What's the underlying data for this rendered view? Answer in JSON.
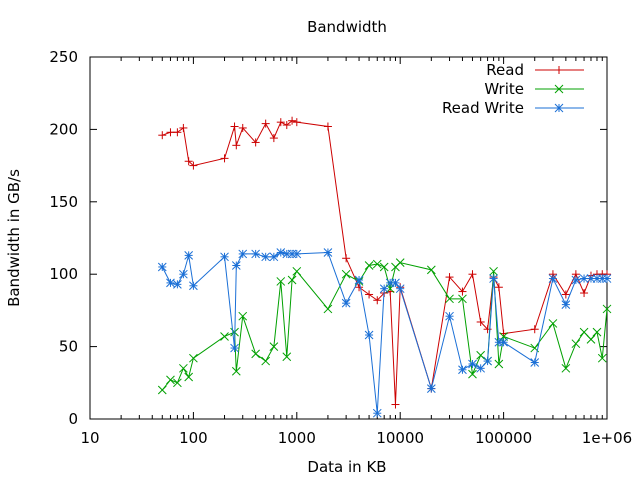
{
  "chart_data": {
    "type": "line",
    "title": "Bandwidth",
    "xlabel": "Data in KB",
    "ylabel": "Bandwidth in GB/s",
    "xscale": "log",
    "xlim": [
      10,
      1000000
    ],
    "ylim": [
      0,
      250
    ],
    "x_ticks": [
      10,
      100,
      1000,
      10000,
      100000,
      1000000
    ],
    "x_tick_labels": [
      "10",
      "100",
      "1000",
      "10000",
      "100000",
      "1e+06"
    ],
    "y_ticks": [
      0,
      50,
      100,
      150,
      200,
      250
    ],
    "y_tick_labels": [
      "0",
      "50",
      "100",
      "150",
      "200",
      "250"
    ],
    "grid": false,
    "legend_position": "top-right",
    "series": [
      {
        "name": "Read",
        "color": "#cc0000",
        "marker": "plus",
        "points": [
          [
            50,
            196
          ],
          [
            60,
            198
          ],
          [
            70,
            198
          ],
          [
            80,
            201
          ],
          [
            90,
            178
          ],
          [
            100,
            175
          ],
          [
            200,
            180
          ],
          [
            250,
            202
          ],
          [
            260,
            189
          ],
          [
            300,
            201
          ],
          [
            400,
            191
          ],
          [
            500,
            204
          ],
          [
            600,
            194
          ],
          [
            700,
            205
          ],
          [
            800,
            203
          ],
          [
            900,
            206
          ],
          [
            1000,
            205
          ],
          [
            2000,
            202
          ],
          [
            3000,
            111
          ],
          [
            4000,
            91
          ],
          [
            5000,
            86
          ],
          [
            6000,
            82
          ],
          [
            7000,
            87
          ],
          [
            8000,
            88
          ],
          [
            9000,
            10
          ],
          [
            10000,
            91
          ],
          [
            20000,
            21
          ],
          [
            30000,
            98
          ],
          [
            40000,
            88
          ],
          [
            50000,
            100
          ],
          [
            60000,
            67
          ],
          [
            70000,
            62
          ],
          [
            80000,
            98
          ],
          [
            90000,
            91
          ],
          [
            100000,
            59
          ],
          [
            200000,
            62
          ],
          [
            300000,
            100
          ],
          [
            400000,
            86
          ],
          [
            500000,
            100
          ],
          [
            600000,
            87
          ],
          [
            700000,
            99
          ],
          [
            800000,
            100
          ],
          [
            900000,
            100
          ],
          [
            1000000,
            100
          ]
        ]
      },
      {
        "name": "Write",
        "color": "#00a000",
        "marker": "cross",
        "points": [
          [
            50,
            20
          ],
          [
            60,
            27
          ],
          [
            70,
            25
          ],
          [
            80,
            35
          ],
          [
            90,
            29
          ],
          [
            100,
            42
          ],
          [
            200,
            57
          ],
          [
            250,
            60
          ],
          [
            260,
            33
          ],
          [
            300,
            71
          ],
          [
            400,
            45
          ],
          [
            500,
            40
          ],
          [
            600,
            50
          ],
          [
            700,
            95
          ],
          [
            800,
            43
          ],
          [
            900,
            96
          ],
          [
            1000,
            102
          ],
          [
            2000,
            76
          ],
          [
            3000,
            100
          ],
          [
            4000,
            95
          ],
          [
            5000,
            106
          ],
          [
            6000,
            107
          ],
          [
            7000,
            105
          ],
          [
            8000,
            90
          ],
          [
            9000,
            105
          ],
          [
            10000,
            108
          ],
          [
            20000,
            103
          ],
          [
            30000,
            83
          ],
          [
            40000,
            83
          ],
          [
            50000,
            31
          ],
          [
            60000,
            44
          ],
          [
            70000,
            40
          ],
          [
            80000,
            102
          ],
          [
            90000,
            38
          ],
          [
            100000,
            57
          ],
          [
            200000,
            49
          ],
          [
            300000,
            66
          ],
          [
            400000,
            35
          ],
          [
            500000,
            52
          ],
          [
            600000,
            60
          ],
          [
            700000,
            55
          ],
          [
            800000,
            60
          ],
          [
            900000,
            42
          ],
          [
            1000000,
            76
          ]
        ]
      },
      {
        "name": "Read Write",
        "color": "#1a6fd6",
        "marker": "star",
        "points": [
          [
            50,
            105
          ],
          [
            60,
            94
          ],
          [
            70,
            93
          ],
          [
            80,
            100
          ],
          [
            90,
            113
          ],
          [
            100,
            92
          ],
          [
            200,
            112
          ],
          [
            250,
            49
          ],
          [
            260,
            106
          ],
          [
            300,
            114
          ],
          [
            400,
            114
          ],
          [
            500,
            112
          ],
          [
            600,
            112
          ],
          [
            700,
            115
          ],
          [
            800,
            114
          ],
          [
            900,
            114
          ],
          [
            1000,
            114
          ],
          [
            2000,
            115
          ],
          [
            3000,
            80
          ],
          [
            4000,
            96
          ],
          [
            5000,
            58
          ],
          [
            6000,
            4
          ],
          [
            7000,
            90
          ],
          [
            8000,
            94
          ],
          [
            9000,
            94
          ],
          [
            10000,
            90
          ],
          [
            20000,
            21
          ],
          [
            30000,
            71
          ],
          [
            40000,
            34
          ],
          [
            50000,
            38
          ],
          [
            60000,
            35
          ],
          [
            70000,
            40
          ],
          [
            80000,
            97
          ],
          [
            90000,
            53
          ],
          [
            100000,
            53
          ],
          [
            200000,
            39
          ],
          [
            300000,
            97
          ],
          [
            400000,
            79
          ],
          [
            500000,
            96
          ],
          [
            600000,
            97
          ],
          [
            700000,
            97
          ],
          [
            800000,
            97
          ],
          [
            900000,
            97
          ],
          [
            1000000,
            97
          ]
        ]
      }
    ]
  }
}
